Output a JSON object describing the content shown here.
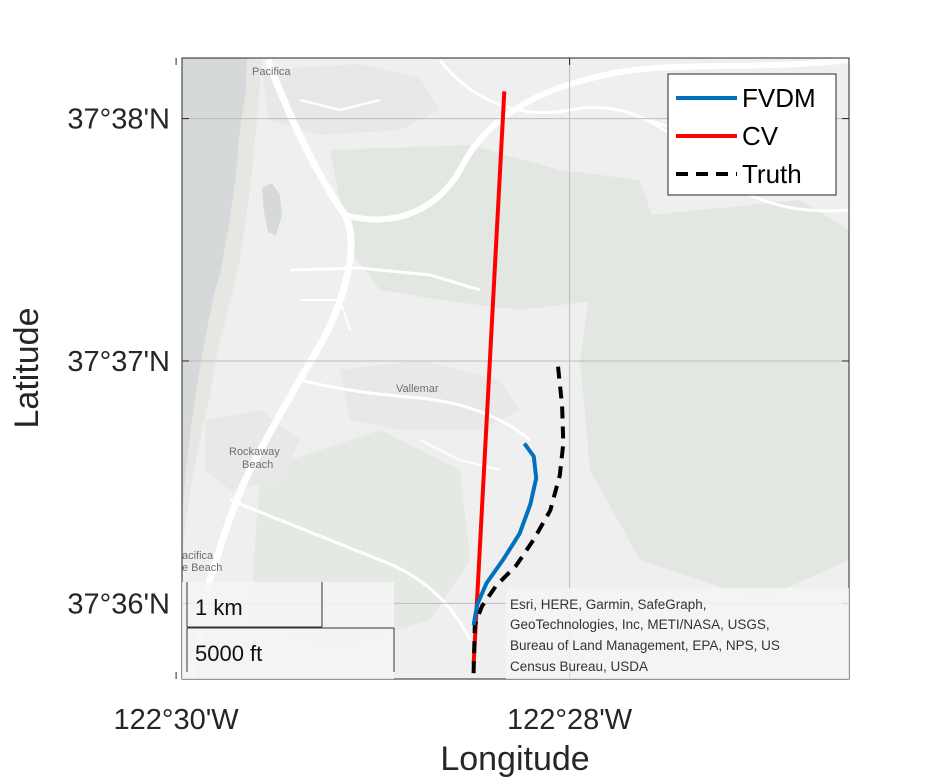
{
  "axes": {
    "xlabel": "Longitude",
    "ylabel": "Latitude",
    "x_ticks": [
      {
        "value": -122.5,
        "label": "122°30'W"
      },
      {
        "value": -122.466667,
        "label": "122°28'W"
      }
    ],
    "y_ticks": [
      {
        "value": 37.633333,
        "label": "37°38'N"
      },
      {
        "value": 37.616667,
        "label": "37°37'N"
      },
      {
        "value": 37.6,
        "label": "37°36'N"
      }
    ],
    "xlim": [
      -122.4995,
      -122.443
    ],
    "ylim": [
      37.5948,
      37.6375
    ],
    "grid": true
  },
  "map": {
    "basemap": "light gray canvas",
    "place_labels": [
      "Pacifica",
      "Vallemar",
      "Rockaway",
      "Beach",
      "acifica",
      "e Beach"
    ],
    "attribution": [
      "Esri, HERE, Garmin, SafeGraph,",
      "GeoTechnologies, Inc, METI/NASA, USGS,",
      "Bureau of Land Management, EPA, NPS, US",
      "Census Bureau, USDA"
    ],
    "scalebar": {
      "km_label": "1 km",
      "ft_label": "5000 ft"
    },
    "colors": {
      "land": "#efefef",
      "water": "#d6d9da",
      "park": "#e2e8e1",
      "road": "#ffffff"
    }
  },
  "legend": {
    "position": "top-right",
    "entries": [
      {
        "name": "FVDM",
        "color": "#0072BD",
        "style": "solid"
      },
      {
        "name": "CV",
        "color": "#FF0000",
        "style": "solid"
      },
      {
        "name": "Truth",
        "color": "#000000",
        "style": "dashed"
      }
    ]
  },
  "chart_data": {
    "type": "line",
    "xlabel": "Longitude",
    "ylabel": "Latitude",
    "xlim": [
      -122.4995,
      -122.443
    ],
    "ylim": [
      37.5948,
      37.6375
    ],
    "series": [
      {
        "name": "CV",
        "color": "#FF0000",
        "x": [
          -122.4748,
          -122.4722
        ],
        "y": [
          37.5958,
          37.6352
        ]
      },
      {
        "name": "Truth",
        "color": "#000000",
        "x": [
          -122.4748,
          -122.4747,
          -122.4741,
          -122.4729,
          -122.4712,
          -122.4697,
          -122.4683,
          -122.4675,
          -122.4672,
          -122.4673,
          -122.4677
        ],
        "y": [
          37.5952,
          37.5985,
          37.5998,
          37.6012,
          37.6026,
          37.6044,
          37.6064,
          37.6088,
          37.611,
          37.6136,
          37.6167
        ]
      },
      {
        "name": "FVDM",
        "color": "#0072BD",
        "x": [
          -122.4748,
          -122.4745,
          -122.4737,
          -122.4723,
          -122.4709,
          -122.47,
          -122.4695,
          -122.4697,
          -122.4705
        ],
        "y": [
          37.5985,
          37.5999,
          37.6014,
          37.603,
          37.6048,
          37.6068,
          37.6086,
          37.6101,
          37.611
        ]
      }
    ]
  }
}
